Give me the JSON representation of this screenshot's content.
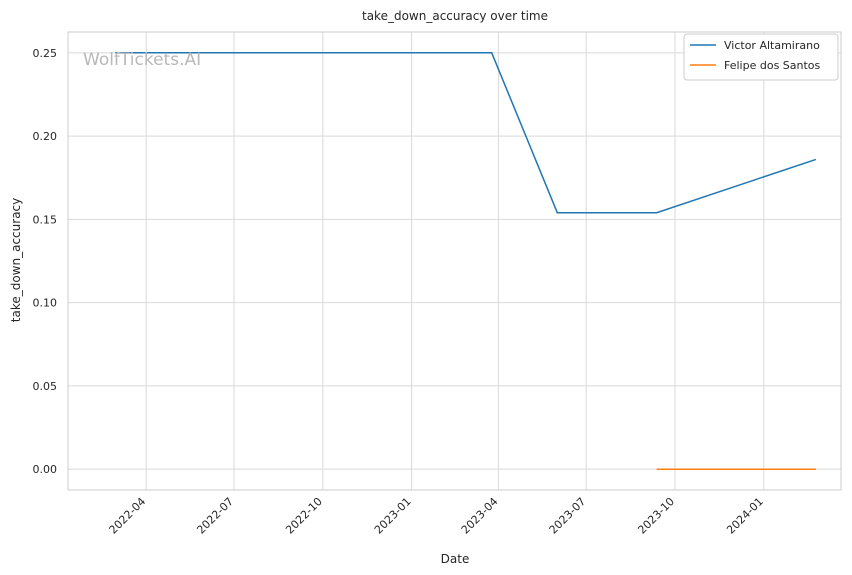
{
  "watermark": "WolfTickets.AI",
  "chart_data": {
    "type": "line",
    "title": "take_down_accuracy over time",
    "xlabel": "Date",
    "ylabel": "take_down_accuracy",
    "xlim": [
      "2022-01-10",
      "2024-03-21"
    ],
    "ylim": [
      -0.0125,
      0.2625
    ],
    "x_ticks": [
      "2022-04",
      "2022-07",
      "2022-10",
      "2023-01",
      "2023-04",
      "2023-07",
      "2023-10",
      "2024-01"
    ],
    "y_ticks": [
      "0.00",
      "0.05",
      "0.10",
      "0.15",
      "0.20",
      "0.25"
    ],
    "grid": true,
    "legend_position": "top-right",
    "series": [
      {
        "name": "Victor Altamirano",
        "color": "#1f77b4",
        "x": [
          "2022-02-28",
          "2023-03-25",
          "2023-06-01",
          "2023-09-12",
          "2024-02-24"
        ],
        "y": [
          0.25,
          0.25,
          0.154,
          0.154,
          0.186
        ]
      },
      {
        "name": "Felipe dos Santos",
        "color": "#ff7f0e",
        "x": [
          "2023-09-12",
          "2024-02-24"
        ],
        "y": [
          0.0,
          0.0
        ]
      }
    ]
  }
}
